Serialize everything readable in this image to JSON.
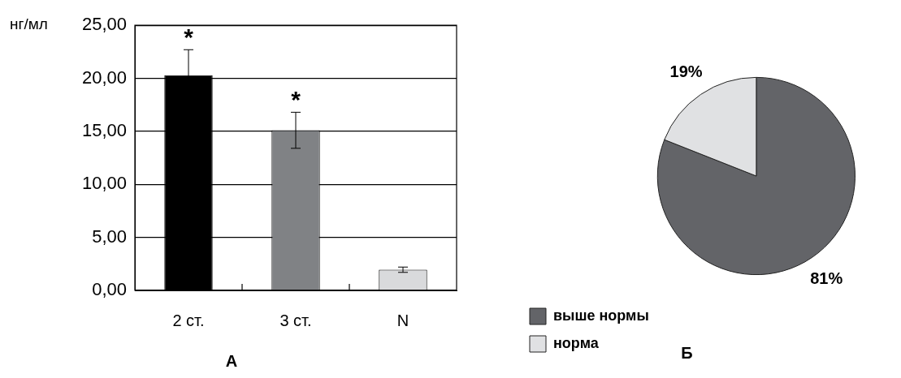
{
  "chart_data": [
    {
      "type": "bar",
      "title": "А",
      "ylabel": "нг/мл",
      "categories": [
        "2 ст.",
        "3 ст.",
        "N"
      ],
      "values": [
        20.3,
        15.1,
        1.95
      ],
      "colors": [
        "#000000",
        "#808285",
        "#d9dadc"
      ],
      "errors": [
        2.4,
        1.7,
        0.25
      ],
      "ylim": [
        0,
        25
      ],
      "yticks": [
        {
          "value": 0,
          "label": "0,00"
        },
        {
          "value": 5,
          "label": "5,00"
        },
        {
          "value": 10,
          "label": "10,00"
        },
        {
          "value": 15,
          "label": "15,00"
        },
        {
          "value": 20,
          "label": "20,00"
        },
        {
          "value": 25,
          "label": "25,00"
        }
      ],
      "grid": "y",
      "annotations": [
        "*",
        "*"
      ]
    },
    {
      "type": "pie",
      "title": "Б",
      "categories": [
        "выше нормы",
        "норма"
      ],
      "values": [
        81,
        19
      ],
      "colors": [
        "#636468",
        "#e0e1e3"
      ],
      "value_labels": [
        "81%",
        "19%"
      ],
      "legend": "bottom left"
    }
  ]
}
